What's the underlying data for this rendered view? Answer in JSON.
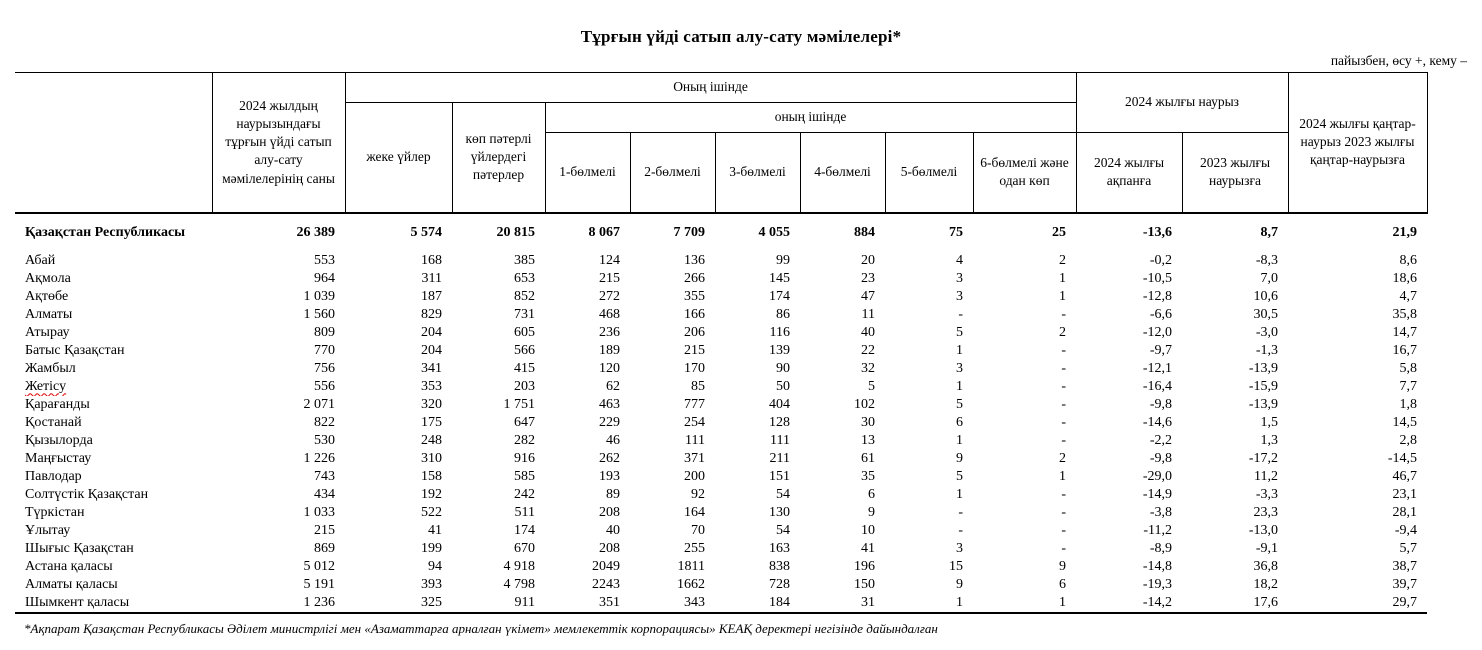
{
  "page": {
    "title": "Тұрғын үйді сатып алу-сату мәмілелері*",
    "unit_note": "пайызбен, өсу +, кему –",
    "footnote": "*Ақпарат Қазақстан Республикасы Әділет министрлігі мен «Азаматтарға арналған үкімет» мемлекеттік корпорациясы» КЕАҚ деректері негізінде дайындалған"
  },
  "table": {
    "header": {
      "region_col": "",
      "count_col": "2024 жылдың наурызындағы тұрғын үйді сатып алу-сату мәмілелерінің саны",
      "of_which": "Оның ішінде",
      "individual_houses": "жеке үйлер",
      "apartments": "көп пәтерлі үйлердегі пәтерлер",
      "of_which_inner": "оның ішінде",
      "rooms": [
        "1-бөлмелі",
        "2-бөлмелі",
        "3-бөлмелі",
        "4-бөлмелі",
        "5-бөлмелі",
        "6-бөлмелі және одан көп"
      ],
      "march_2024": "2024 жылғы наурыз",
      "to_feb_2024": "2024 жылғы ақпанға",
      "to_mar_2023": "2023 жылғы наурызға",
      "jan_mar_ratio": "2024 жылғы қаңтар-наурыз 2023 жылғы қаңтар-наурызға"
    },
    "rows": [
      {
        "name": "Қазақстан Республикасы",
        "total": true,
        "values": [
          "26 389",
          "5 574",
          "20 815",
          "8 067",
          "7 709",
          "4 055",
          "884",
          "75",
          "25",
          "-13,6",
          "8,7",
          "21,9"
        ]
      },
      {
        "name": "Абай",
        "values": [
          "553",
          "168",
          "385",
          "124",
          "136",
          "99",
          "20",
          "4",
          "2",
          "-0,2",
          "-8,3",
          "8,6"
        ]
      },
      {
        "name": "Ақмола",
        "values": [
          "964",
          "311",
          "653",
          "215",
          "266",
          "145",
          "23",
          "3",
          "1",
          "-10,5",
          "7,0",
          "18,6"
        ]
      },
      {
        "name": "Ақтөбе",
        "values": [
          "1 039",
          "187",
          "852",
          "272",
          "355",
          "174",
          "47",
          "3",
          "1",
          "-12,8",
          "10,6",
          "4,7"
        ]
      },
      {
        "name": "Алматы",
        "values": [
          "1 560",
          "829",
          "731",
          "468",
          "166",
          "86",
          "11",
          "-",
          "-",
          "-6,6",
          "30,5",
          "35,8"
        ]
      },
      {
        "name": "Атырау",
        "values": [
          "809",
          "204",
          "605",
          "236",
          "206",
          "116",
          "40",
          "5",
          "2",
          "-12,0",
          "-3,0",
          "14,7"
        ]
      },
      {
        "name": "Батыс Қазақстан",
        "values": [
          "770",
          "204",
          "566",
          "189",
          "215",
          "139",
          "22",
          "1",
          "-",
          "-9,7",
          "-1,3",
          "16,7"
        ]
      },
      {
        "name": "Жамбыл",
        "values": [
          "756",
          "341",
          "415",
          "120",
          "170",
          "90",
          "32",
          "3",
          "-",
          "-12,1",
          "-13,9",
          "5,8"
        ]
      },
      {
        "name": "Жетісу",
        "misspell": true,
        "values": [
          "556",
          "353",
          "203",
          "62",
          "85",
          "50",
          "5",
          "1",
          "-",
          "-16,4",
          "-15,9",
          "7,7"
        ]
      },
      {
        "name": "Қарағанды",
        "values": [
          "2 071",
          "320",
          "1 751",
          "463",
          "777",
          "404",
          "102",
          "5",
          "-",
          "-9,8",
          "-13,9",
          "1,8"
        ]
      },
      {
        "name": "Қостанай",
        "values": [
          "822",
          "175",
          "647",
          "229",
          "254",
          "128",
          "30",
          "6",
          "-",
          "-14,6",
          "1,5",
          "14,5"
        ]
      },
      {
        "name": "Қызылорда",
        "values": [
          "530",
          "248",
          "282",
          "46",
          "111",
          "111",
          "13",
          "1",
          "-",
          "-2,2",
          "1,3",
          "2,8"
        ]
      },
      {
        "name": "Маңғыстау",
        "values": [
          "1 226",
          "310",
          "916",
          "262",
          "371",
          "211",
          "61",
          "9",
          "2",
          "-9,8",
          "-17,2",
          "-14,5"
        ]
      },
      {
        "name": "Павлодар",
        "values": [
          "743",
          "158",
          "585",
          "193",
          "200",
          "151",
          "35",
          "5",
          "1",
          "-29,0",
          "11,2",
          "46,7"
        ]
      },
      {
        "name": "Солтүстік Қазақстан",
        "values": [
          "434",
          "192",
          "242",
          "89",
          "92",
          "54",
          "6",
          "1",
          "-",
          "-14,9",
          "-3,3",
          "23,1"
        ]
      },
      {
        "name": "Түркістан",
        "values": [
          "1 033",
          "522",
          "511",
          "208",
          "164",
          "130",
          "9",
          "-",
          "-",
          "-3,8",
          "23,3",
          "28,1"
        ]
      },
      {
        "name": "Ұлытау",
        "values": [
          "215",
          "41",
          "174",
          "40",
          "70",
          "54",
          "10",
          "-",
          "-",
          "-11,2",
          "-13,0",
          "-9,4"
        ]
      },
      {
        "name": "Шығыс Қазақстан",
        "values": [
          "869",
          "199",
          "670",
          "208",
          "255",
          "163",
          "41",
          "3",
          "-",
          "-8,9",
          "-9,1",
          "5,7"
        ]
      },
      {
        "name": "Астана қаласы",
        "values": [
          "5 012",
          "94",
          "4 918",
          "2049",
          "1811",
          "838",
          "196",
          "15",
          "9",
          "-14,8",
          "36,8",
          "38,7"
        ]
      },
      {
        "name": "Алматы қаласы",
        "values": [
          "5 191",
          "393",
          "4 798",
          "2243",
          "1662",
          "728",
          "150",
          "9",
          "6",
          "-19,3",
          "18,2",
          "39,7"
        ]
      },
      {
        "name": "Шымкент қаласы",
        "values": [
          "1 236",
          "325",
          "911",
          "351",
          "343",
          "184",
          "31",
          "1",
          "1",
          "-14,2",
          "17,6",
          "29,7"
        ]
      }
    ]
  }
}
